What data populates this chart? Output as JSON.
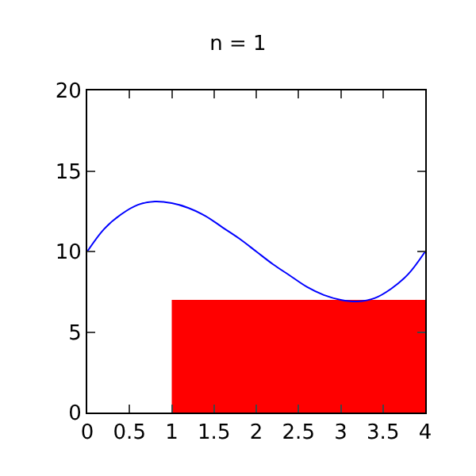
{
  "chart_data": {
    "type": "line",
    "title": "n = 1",
    "series": [
      {
        "type": "area",
        "color": "#ff0000",
        "x": [
          1,
          4
        ],
        "values": [
          7,
          7
        ]
      },
      {
        "color": "#0000ff",
        "x": [
          0,
          0.2,
          0.4,
          0.6,
          0.8,
          1.0,
          1.2,
          1.4,
          1.6,
          1.8,
          2.0,
          2.2,
          2.4,
          2.6,
          2.8,
          3.0,
          3.2,
          3.4,
          3.6,
          3.8,
          4.0
        ],
        "values": [
          10,
          11.4,
          12.3,
          12.9,
          13.1,
          13,
          12.7,
          12.2,
          11.5,
          10.8,
          10,
          9.2,
          8.5,
          7.8,
          7.3,
          7,
          6.9,
          7.1,
          7.7,
          8.6,
          10
        ]
      }
    ],
    "xlim": [
      0,
      4
    ],
    "xticks": [
      0,
      0.5,
      1,
      1.5,
      2,
      2.5,
      3,
      3.5,
      4
    ],
    "ylim": [
      0,
      20
    ],
    "yticks": [
      0,
      5,
      10,
      15,
      20
    ]
  }
}
